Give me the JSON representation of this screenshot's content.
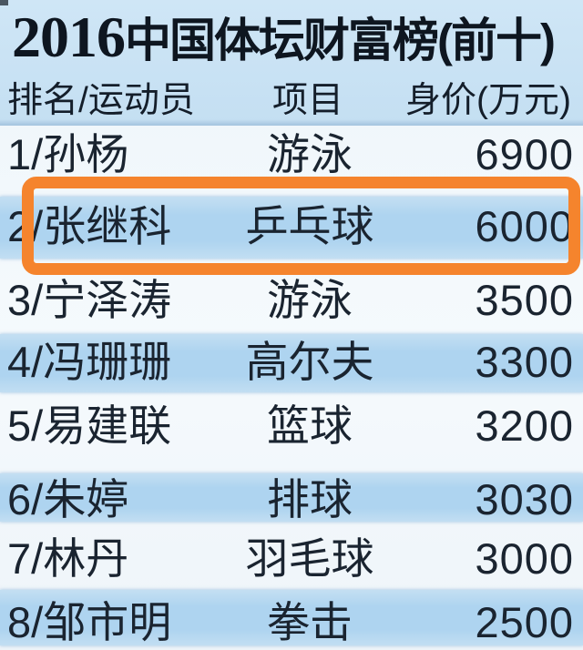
{
  "page": {
    "title": {
      "year": "2016",
      "rest": "中国体坛财富榜(前十)",
      "full": "2016中国体坛财富榜(前十)"
    },
    "columns": [
      {
        "key": "rank_athlete",
        "label": "排名/运动员"
      },
      {
        "key": "sport",
        "label": "项目"
      },
      {
        "key": "worth",
        "label": "身价(万元)"
      }
    ],
    "rows": [
      {
        "rank_athlete": "1/孙杨",
        "sport": "游泳",
        "worth": "6900",
        "shaded": false,
        "highlighted": false
      },
      {
        "rank_athlete": "2/张继科",
        "sport": "乒乓球",
        "worth": "6000",
        "shaded": true,
        "highlighted": true
      },
      {
        "rank_athlete": "3/宁泽涛",
        "sport": "游泳",
        "worth": "3500",
        "shaded": false,
        "highlighted": false
      },
      {
        "rank_athlete": "4/冯珊珊",
        "sport": "高尔夫",
        "worth": "3300",
        "shaded": true,
        "highlighted": false
      },
      {
        "rank_athlete": "5/易建联",
        "sport": "篮球",
        "worth": "3200",
        "shaded": false,
        "highlighted": false
      },
      {
        "rank_athlete": "6/朱婷",
        "sport": "排球",
        "worth": "3030",
        "shaded": true,
        "highlighted": false
      },
      {
        "rank_athlete": "7/林丹",
        "sport": "羽毛球",
        "worth": "3000",
        "shaded": false,
        "highlighted": false
      },
      {
        "rank_athlete": "8/邹市明",
        "sport": "拳击",
        "worth": "2500",
        "shaded": true,
        "highlighted": false
      }
    ],
    "colors": {
      "highlight_border": "#f5842d",
      "shaded_row": "#aed4f0",
      "header_bg": "#c8e2f4",
      "text": "#1a2430"
    }
  },
  "chart_data": {
    "type": "table",
    "title": "2016中国体坛财富榜(前十)",
    "columns": [
      "排名/运动员",
      "项目",
      "身价(万元)"
    ],
    "rows": [
      [
        "1/孙杨",
        "游泳",
        6900
      ],
      [
        "2/张继科",
        "乒乓球",
        6000
      ],
      [
        "3/宁泽涛",
        "游泳",
        3500
      ],
      [
        "4/冯珊珊",
        "高尔夫",
        3300
      ],
      [
        "5/易建联",
        "篮球",
        3200
      ],
      [
        "6/朱婷",
        "排球",
        3030
      ],
      [
        "7/林丹",
        "羽毛球",
        3000
      ],
      [
        "8/邹市明",
        "拳击",
        2500
      ]
    ],
    "highlighted_row": "2/张继科",
    "legend_position": "none",
    "grid": false
  }
}
